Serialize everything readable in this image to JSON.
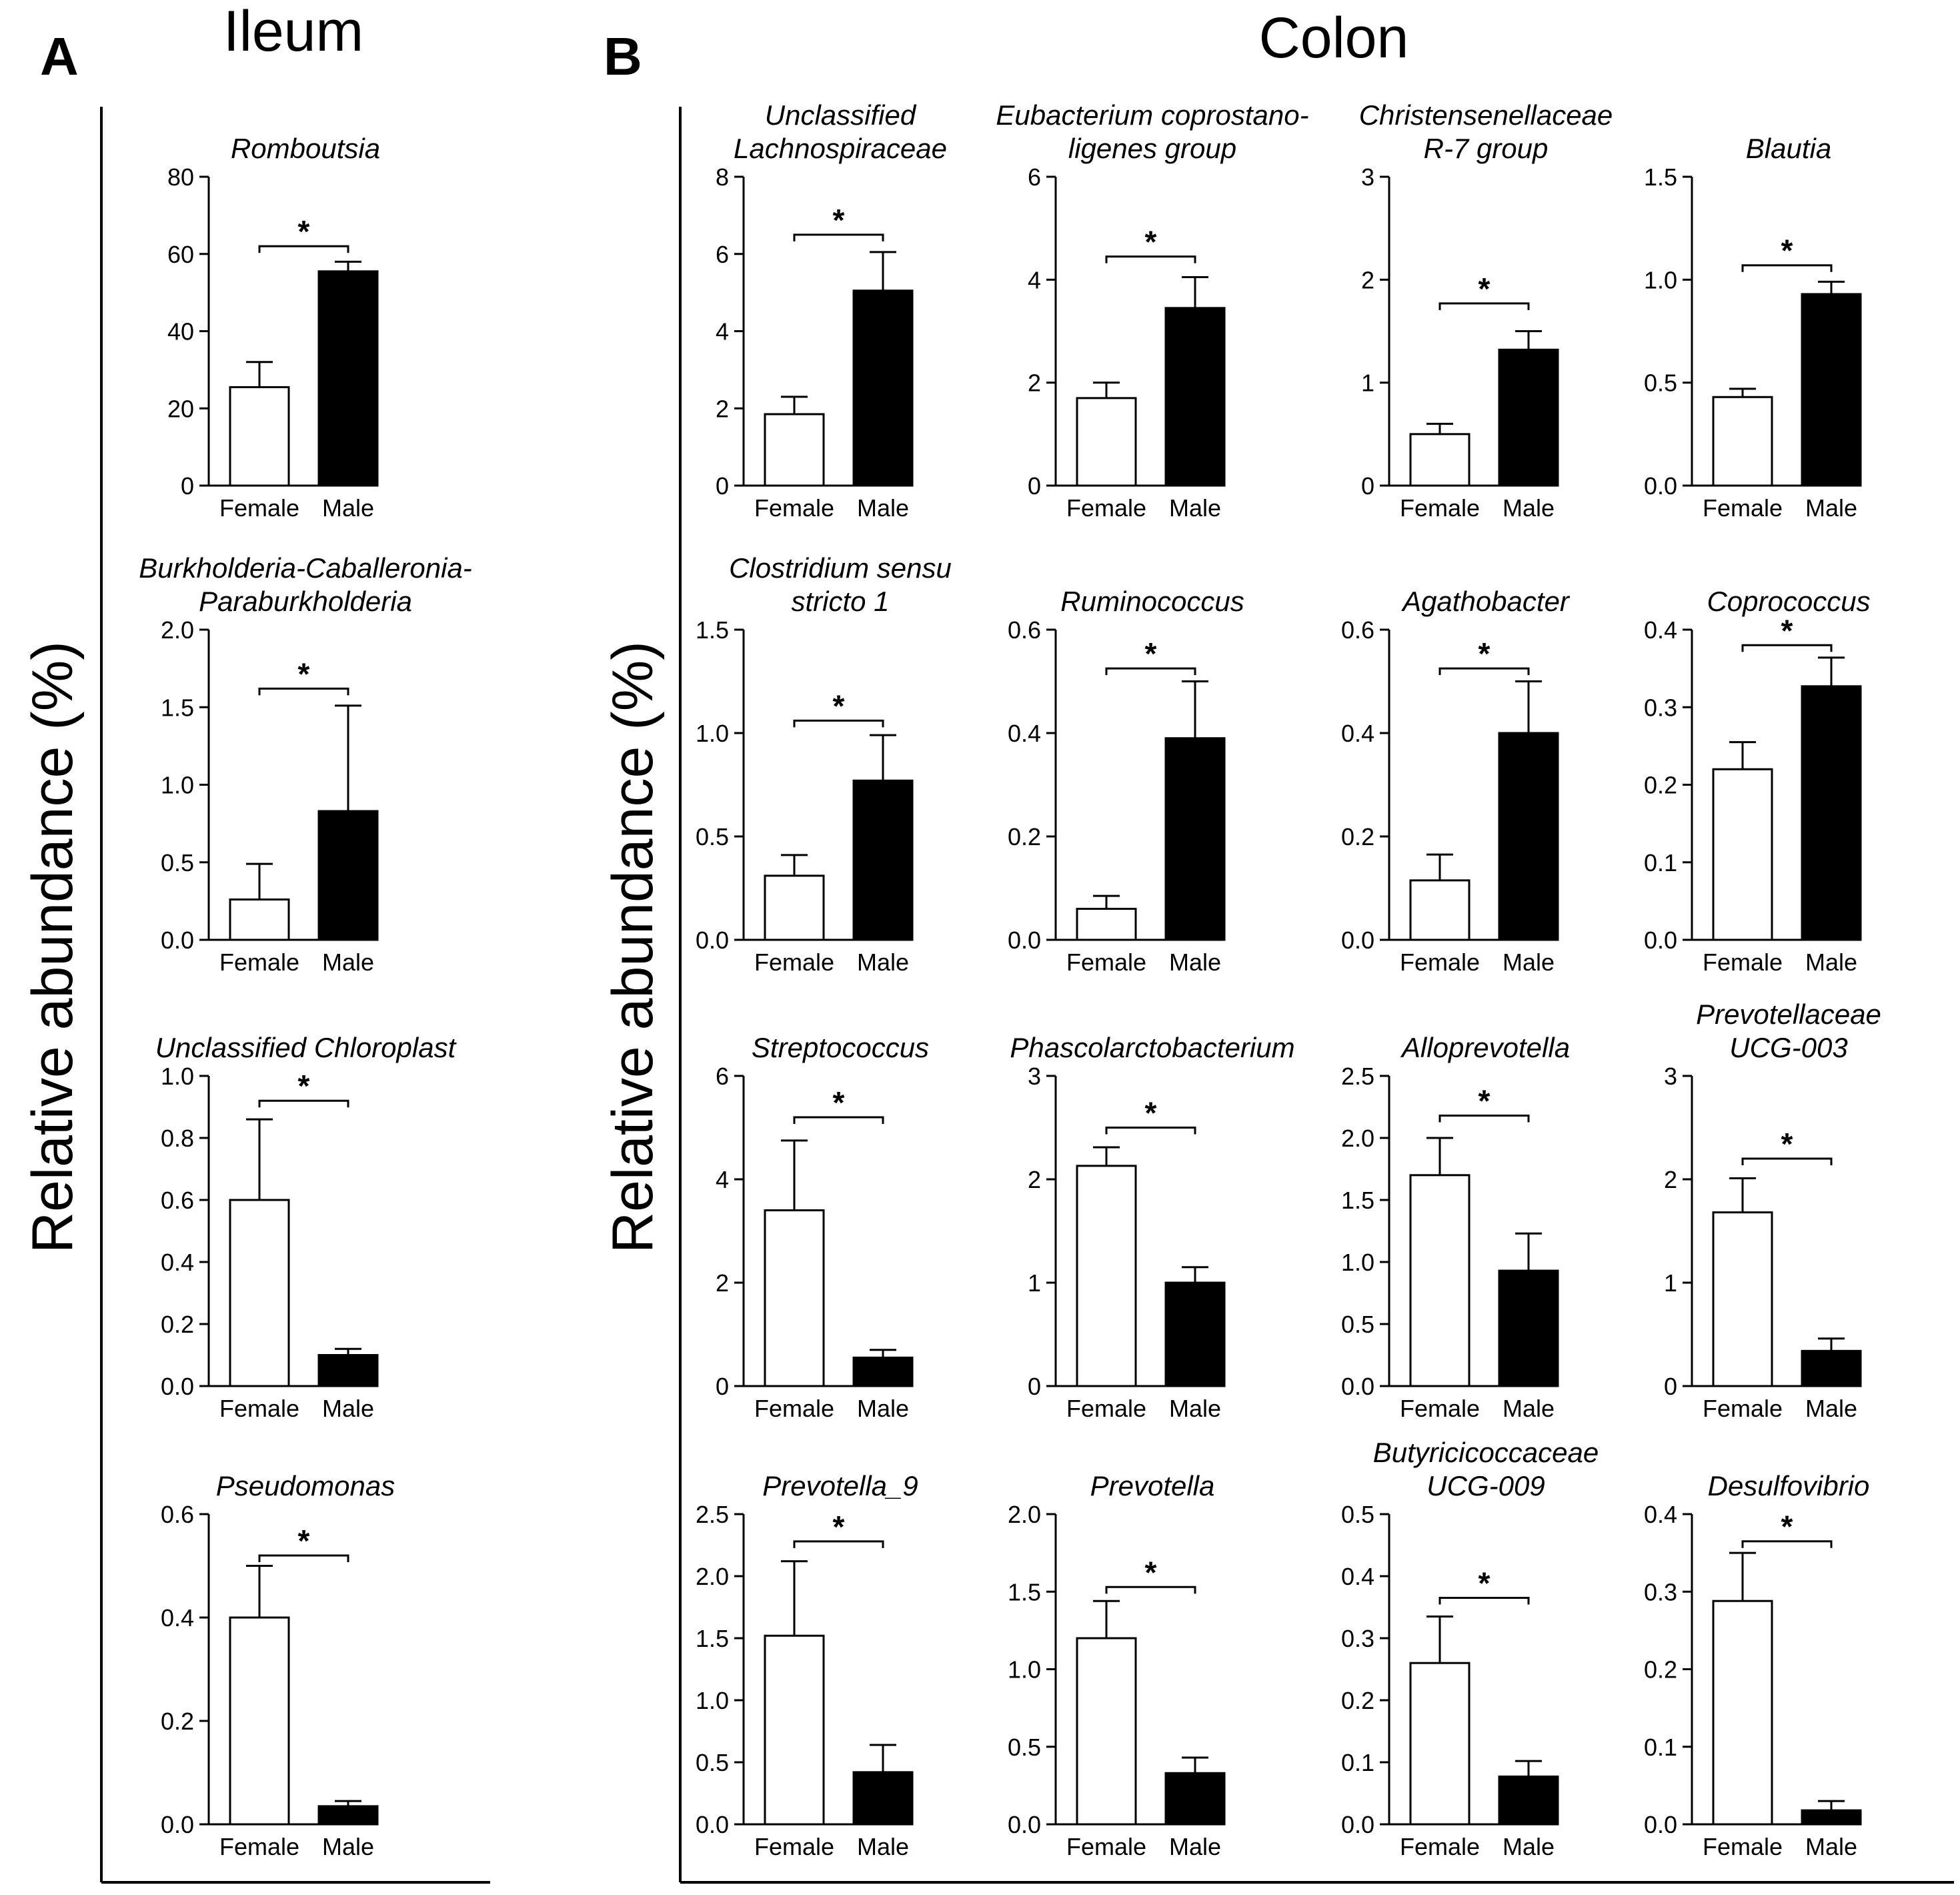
{
  "figure": {
    "panel_a_letter": "A",
    "panel_a_title": "Ileum",
    "panel_b_letter": "B",
    "panel_b_title": "Colon",
    "y_axis_label": "Relative abundance (%)",
    "significance_marker": "*",
    "group_labels": [
      "Female",
      "Male"
    ]
  },
  "colors": {
    "female_fill": "#ffffff",
    "male_fill": "#000000",
    "stroke": "#000000"
  },
  "chart_data": [
    {
      "type": "bar",
      "panel": "A",
      "title": [
        "Romboutsia"
      ],
      "categories": [
        "Female",
        "Male"
      ],
      "values": [
        25.5,
        55.5
      ],
      "errors": [
        6.5,
        2.5
      ],
      "ylim": [
        0,
        80
      ],
      "yticks": [
        "0",
        "20",
        "40",
        "60",
        "80"
      ],
      "sig_y": 62
    },
    {
      "type": "bar",
      "panel": "A",
      "title": [
        "Burkholderia-Caballeronia-",
        "Paraburkholderia"
      ],
      "categories": [
        "Female",
        "Male"
      ],
      "values": [
        0.26,
        0.83
      ],
      "errors": [
        0.23,
        0.68
      ],
      "ylim": [
        0,
        2.0
      ],
      "yticks": [
        "0.0",
        "0.5",
        "1.0",
        "1.5",
        "2.0"
      ],
      "sig_y": 1.62
    },
    {
      "type": "bar",
      "panel": "A",
      "title": [
        "Unclassified Chloroplast"
      ],
      "categories": [
        "Female",
        "Male"
      ],
      "values": [
        0.6,
        0.1
      ],
      "errors": [
        0.26,
        0.02
      ],
      "ylim": [
        0,
        1.0
      ],
      "yticks": [
        "0.0",
        "0.2",
        "0.4",
        "0.6",
        "0.8",
        "1.0"
      ],
      "sig_y": 0.92
    },
    {
      "type": "bar",
      "panel": "A",
      "title": [
        "Pseudomonas"
      ],
      "categories": [
        "Female",
        "Male"
      ],
      "values": [
        0.4,
        0.035
      ],
      "errors": [
        0.1,
        0.01
      ],
      "ylim": [
        0,
        0.6
      ],
      "yticks": [
        "0.0",
        "0.2",
        "0.4",
        "0.6"
      ],
      "sig_y": 0.52
    },
    {
      "type": "bar",
      "panel": "B",
      "title": [
        "Unclassified",
        "Lachnospiraceae"
      ],
      "categories": [
        "Female",
        "Male"
      ],
      "values": [
        1.85,
        5.05
      ],
      "errors": [
        0.45,
        1.0
      ],
      "ylim": [
        0,
        8
      ],
      "yticks": [
        "0",
        "2",
        "4",
        "6",
        "8"
      ],
      "sig_y": 6.5
    },
    {
      "type": "bar",
      "panel": "B",
      "title": [
        "Eubacterium coprostano-",
        "ligenes group"
      ],
      "categories": [
        "Female",
        "Male"
      ],
      "values": [
        1.7,
        3.45
      ],
      "errors": [
        0.3,
        0.6
      ],
      "ylim": [
        0,
        6
      ],
      "yticks": [
        "0",
        "2",
        "4",
        "6"
      ],
      "sig_y": 4.45
    },
    {
      "type": "bar",
      "panel": "B",
      "title": [
        "Christensenellaceae",
        "R-7 group"
      ],
      "categories": [
        "Female",
        "Male"
      ],
      "values": [
        0.5,
        1.32
      ],
      "errors": [
        0.1,
        0.18
      ],
      "ylim": [
        0,
        3
      ],
      "yticks": [
        "0",
        "1",
        "2",
        "3"
      ],
      "sig_y": 1.77
    },
    {
      "type": "bar",
      "panel": "B",
      "title": [
        "Blautia"
      ],
      "categories": [
        "Female",
        "Male"
      ],
      "values": [
        0.43,
        0.93
      ],
      "errors": [
        0.04,
        0.06
      ],
      "ylim": [
        0,
        1.5
      ],
      "yticks": [
        "0.0",
        "0.5",
        "1.0",
        "1.5"
      ],
      "sig_y": 1.07
    },
    {
      "type": "bar",
      "panel": "B",
      "title": [
        "Clostridium sensu",
        "stricto 1"
      ],
      "categories": [
        "Female",
        "Male"
      ],
      "values": [
        0.31,
        0.77
      ],
      "errors": [
        0.1,
        0.22
      ],
      "ylim": [
        0,
        1.5
      ],
      "yticks": [
        "0.0",
        "0.5",
        "1.0",
        "1.5"
      ],
      "sig_y": 1.06
    },
    {
      "type": "bar",
      "panel": "B",
      "title": [
        "Ruminococcus"
      ],
      "categories": [
        "Female",
        "Male"
      ],
      "values": [
        0.06,
        0.39
      ],
      "errors": [
        0.025,
        0.11
      ],
      "ylim": [
        0,
        0.6
      ],
      "yticks": [
        "0.0",
        "0.2",
        "0.4",
        "0.6"
      ],
      "sig_y": 0.525
    },
    {
      "type": "bar",
      "panel": "B",
      "title": [
        "Agathobacter"
      ],
      "categories": [
        "Female",
        "Male"
      ],
      "values": [
        0.115,
        0.4
      ],
      "errors": [
        0.05,
        0.1
      ],
      "ylim": [
        0,
        0.6
      ],
      "yticks": [
        "0.0",
        "0.2",
        "0.4",
        "0.6"
      ],
      "sig_y": 0.525
    },
    {
      "type": "bar",
      "panel": "B",
      "title": [
        "Coprococcus"
      ],
      "categories": [
        "Female",
        "Male"
      ],
      "values": [
        0.22,
        0.327
      ],
      "errors": [
        0.035,
        0.037
      ],
      "ylim": [
        0,
        0.4
      ],
      "yticks": [
        "0.0",
        "0.1",
        "0.2",
        "0.3",
        "0.4"
      ],
      "sig_y": 0.38
    },
    {
      "type": "bar",
      "panel": "B",
      "title": [
        "Streptococcus"
      ],
      "categories": [
        "Female",
        "Male"
      ],
      "values": [
        3.4,
        0.55
      ],
      "errors": [
        1.35,
        0.15
      ],
      "ylim": [
        0,
        6
      ],
      "yticks": [
        "0",
        "2",
        "4",
        "6"
      ],
      "sig_y": 5.2
    },
    {
      "type": "bar",
      "panel": "B",
      "title": [
        "Phascolarctobacterium"
      ],
      "categories": [
        "Female",
        "Male"
      ],
      "values": [
        2.13,
        1.0
      ],
      "errors": [
        0.18,
        0.15
      ],
      "ylim": [
        0,
        3
      ],
      "yticks": [
        "0",
        "1",
        "2",
        "3"
      ],
      "sig_y": 2.5
    },
    {
      "type": "bar",
      "panel": "B",
      "title": [
        "Alloprevotella"
      ],
      "categories": [
        "Female",
        "Male"
      ],
      "values": [
        1.7,
        0.93
      ],
      "errors": [
        0.3,
        0.3
      ],
      "ylim": [
        0,
        2.5
      ],
      "yticks": [
        "0.0",
        "0.5",
        "1.0",
        "1.5",
        "2.0",
        "2.5"
      ],
      "sig_y": 2.18
    },
    {
      "type": "bar",
      "panel": "B",
      "title": [
        "Prevotellaceae",
        "UCG-003"
      ],
      "categories": [
        "Female",
        "Male"
      ],
      "values": [
        1.68,
        0.34
      ],
      "errors": [
        0.33,
        0.12
      ],
      "ylim": [
        0,
        3
      ],
      "yticks": [
        "0",
        "1",
        "2",
        "3"
      ],
      "sig_y": 2.2
    },
    {
      "type": "bar",
      "panel": "B",
      "title": [
        "Prevotella_9"
      ],
      "categories": [
        "Female",
        "Male"
      ],
      "values": [
        1.52,
        0.42
      ],
      "errors": [
        0.6,
        0.22
      ],
      "ylim": [
        0,
        2.5
      ],
      "yticks": [
        "0.0",
        "0.5",
        "1.0",
        "1.5",
        "2.0",
        "2.5"
      ],
      "sig_y": 2.28
    },
    {
      "type": "bar",
      "panel": "B",
      "title": [
        "Prevotella"
      ],
      "categories": [
        "Female",
        "Male"
      ],
      "values": [
        1.2,
        0.33
      ],
      "errors": [
        0.24,
        0.1
      ],
      "ylim": [
        0,
        2.0
      ],
      "yticks": [
        "0.0",
        "0.5",
        "1.0",
        "1.5",
        "2.0"
      ],
      "sig_y": 1.53
    },
    {
      "type": "bar",
      "panel": "B",
      "title": [
        "Butyricicoccaceae",
        "UCG-009"
      ],
      "categories": [
        "Female",
        "Male"
      ],
      "values": [
        0.26,
        0.077
      ],
      "errors": [
        0.075,
        0.025
      ],
      "ylim": [
        0,
        0.5
      ],
      "yticks": [
        "0.0",
        "0.1",
        "0.2",
        "0.3",
        "0.4",
        "0.5"
      ],
      "sig_y": 0.365
    },
    {
      "type": "bar",
      "panel": "B",
      "title": [
        "Desulfovibrio"
      ],
      "categories": [
        "Female",
        "Male"
      ],
      "values": [
        0.288,
        0.018
      ],
      "errors": [
        0.062,
        0.012
      ],
      "ylim": [
        0,
        0.4
      ],
      "yticks": [
        "0.0",
        "0.1",
        "0.2",
        "0.3",
        "0.4"
      ],
      "sig_y": 0.365
    }
  ]
}
